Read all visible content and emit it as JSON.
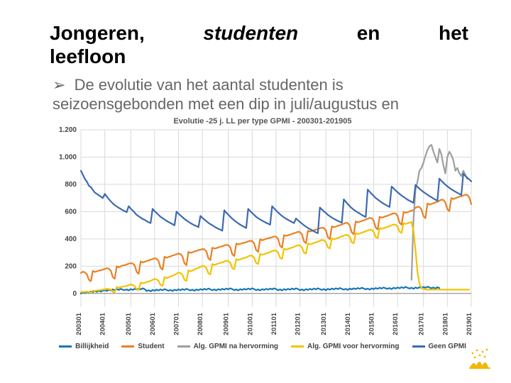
{
  "title_words": [
    "Jongeren,",
    "studenten",
    "en",
    "het"
  ],
  "subtitle": "leefloon",
  "bullet": {
    "arrow": "➢",
    "text": "De evolutie van het aantal studenten is seizoensgebonden met een dip in juli/augustus en"
  },
  "chart": {
    "title": "Evolutie -25 j. LL per type GPMI - 200301-201905",
    "type": "line",
    "x_categories": [
      "200301",
      "200401",
      "200501",
      "200601",
      "200701",
      "200801",
      "200901",
      "201001",
      "201101",
      "201201",
      "201301",
      "201401",
      "201501",
      "201601",
      "201701",
      "201801",
      "201901"
    ],
    "ylim": [
      -100,
      1200
    ],
    "ytick_step": 200,
    "yticks": [
      0,
      200,
      400,
      600,
      800,
      1000,
      1200
    ],
    "yticklabels": [
      "0",
      "200",
      "400",
      "600",
      "800",
      "1.000",
      "1.200"
    ],
    "background_color": "#ffffff",
    "grid_color": "#d9d9d9",
    "line_width": 2.2,
    "series": [
      {
        "name": "Billijkheid",
        "color": "#1776b6",
        "legend": "Billijkheid",
        "values": [
          0,
          10,
          5,
          12,
          8,
          15,
          10,
          18,
          12,
          20,
          14,
          20,
          25,
          18,
          28,
          22,
          30,
          24,
          32,
          26,
          34,
          28,
          25,
          30,
          22,
          32,
          26,
          34,
          28,
          36,
          30,
          38,
          32,
          18,
          24,
          16,
          26,
          20,
          28,
          22,
          30,
          24,
          32,
          26,
          20,
          26,
          18,
          28,
          22,
          30,
          24,
          32,
          26,
          34,
          28,
          22,
          28,
          20,
          30,
          24,
          32,
          26,
          34,
          28,
          36,
          30,
          24,
          30,
          22,
          32,
          26,
          34,
          28,
          36,
          30,
          38,
          32,
          24,
          30,
          22,
          32,
          26,
          34,
          28,
          36,
          30,
          38,
          32,
          24,
          30,
          22,
          32,
          26,
          34,
          28,
          36,
          30,
          38,
          32,
          24,
          30,
          22,
          32,
          26,
          34,
          28,
          36,
          30,
          38,
          32,
          24,
          30,
          22,
          32,
          26,
          34,
          28,
          36,
          30,
          38,
          32,
          26,
          32,
          24,
          34,
          28,
          36,
          30,
          38,
          32,
          40,
          34,
          28,
          34,
          26,
          36,
          30,
          38,
          32,
          40,
          34,
          42,
          36,
          30,
          36,
          28,
          38,
          32,
          40,
          34,
          42,
          36,
          44,
          38,
          34,
          40,
          32,
          42,
          36,
          44,
          38,
          46,
          40,
          48,
          42,
          36,
          42,
          34,
          44,
          38,
          46,
          40,
          48,
          42,
          50,
          44,
          38,
          44,
          36,
          46,
          40
        ]
      },
      {
        "name": "Student",
        "color": "#e98024",
        "legend": "Student",
        "values": [
          150,
          160,
          155,
          140,
          100,
          90,
          165,
          158,
          162,
          168,
          170,
          175,
          180,
          185,
          182,
          168,
          120,
          108,
          200,
          192,
          198,
          205,
          208,
          212,
          218,
          222,
          220,
          205,
          158,
          145,
          235,
          228,
          232,
          238,
          242,
          248,
          252,
          258,
          255,
          238,
          188,
          175,
          270,
          262,
          268,
          272,
          278,
          282,
          288,
          292,
          290,
          272,
          222,
          208,
          305,
          298,
          302,
          308,
          312,
          318,
          320,
          326,
          324,
          308,
          258,
          245,
          335,
          330,
          332,
          338,
          342,
          346,
          352,
          356,
          354,
          338,
          288,
          275,
          366,
          360,
          364,
          368,
          372,
          376,
          382,
          386,
          384,
          368,
          318,
          305,
          398,
          390,
          395,
          400,
          405,
          408,
          412,
          418,
          416,
          400,
          350,
          336,
          428,
          422,
          426,
          432,
          436,
          442,
          446,
          452,
          450,
          432,
          382,
          368,
          460,
          454,
          458,
          464,
          468,
          472,
          478,
          482,
          480,
          462,
          412,
          398,
          492,
          486,
          490,
          496,
          500,
          505,
          512,
          518,
          516,
          498,
          448,
          434,
          528,
          522,
          526,
          532,
          536,
          542,
          548,
          554,
          552,
          534,
          484,
          470,
          562,
          556,
          560,
          566,
          570,
          576,
          582,
          588,
          586,
          568,
          518,
          504,
          598,
          592,
          596,
          602,
          606,
          612,
          628,
          636,
          634,
          616,
          566,
          552,
          660,
          652,
          656,
          662,
          668,
          672,
          680,
          688,
          686,
          668,
          618,
          604,
          700,
          692,
          698,
          704,
          710,
          712,
          718,
          724,
          722,
          705,
          655
        ]
      },
      {
        "name": "Alg. GPMI na hervorming",
        "color": "#9e9e9e",
        "legend": "Alg. GPMI na hervorming",
        "values": [
          null,
          null,
          null,
          null,
          null,
          null,
          null,
          null,
          null,
          null,
          null,
          null,
          null,
          null,
          null,
          null,
          null,
          null,
          null,
          null,
          null,
          null,
          null,
          null,
          null,
          null,
          null,
          null,
          null,
          null,
          null,
          null,
          null,
          null,
          null,
          null,
          null,
          null,
          null,
          null,
          null,
          null,
          null,
          null,
          null,
          null,
          null,
          null,
          null,
          null,
          null,
          null,
          null,
          null,
          null,
          null,
          null,
          null,
          null,
          null,
          null,
          null,
          null,
          null,
          null,
          null,
          null,
          null,
          null,
          null,
          null,
          null,
          null,
          null,
          null,
          null,
          null,
          null,
          null,
          null,
          null,
          null,
          null,
          null,
          null,
          null,
          null,
          null,
          null,
          null,
          null,
          null,
          null,
          null,
          null,
          null,
          null,
          null,
          null,
          null,
          null,
          null,
          null,
          null,
          null,
          null,
          null,
          null,
          null,
          null,
          null,
          null,
          null,
          null,
          null,
          null,
          null,
          null,
          null,
          null,
          null,
          null,
          null,
          null,
          null,
          null,
          null,
          null,
          null,
          null,
          null,
          null,
          null,
          null,
          null,
          null,
          null,
          null,
          null,
          null,
          null,
          null,
          null,
          null,
          null,
          null,
          null,
          null,
          null,
          null,
          null,
          null,
          null,
          null,
          null,
          null,
          null,
          null,
          null,
          null,
          null,
          null,
          null,
          null,
          null,
          null,
          100,
          540,
          760,
          820,
          900,
          920,
          960,
          1010,
          1050,
          1080,
          1090,
          1040,
          1000,
          960,
          1060,
          1020,
          940,
          880,
          1000,
          1040,
          1015,
          980,
          900,
          920,
          880,
          860,
          900,
          870,
          840
        ]
      },
      {
        "name": "Alg. GPMI voor hervorming",
        "color": "#f2c300",
        "legend": "Alg. GPMI voor hervorming",
        "values": [
          10,
          12,
          11,
          14,
          10,
          8,
          20,
          18,
          22,
          24,
          26,
          28,
          30,
          34,
          32,
          28,
          12,
          10,
          48,
          42,
          46,
          50,
          52,
          56,
          60,
          66,
          62,
          52,
          30,
          26,
          80,
          74,
          78,
          84,
          88,
          92,
          100,
          106,
          104,
          92,
          62,
          56,
          120,
          112,
          118,
          124,
          130,
          136,
          145,
          152,
          150,
          136,
          100,
          92,
          170,
          162,
          168,
          176,
          182,
          188,
          195,
          202,
          200,
          186,
          148,
          140,
          216,
          210,
          214,
          220,
          224,
          228,
          234,
          240,
          238,
          224,
          186,
          178,
          252,
          246,
          250,
          256,
          260,
          264,
          272,
          278,
          276,
          262,
          224,
          216,
          290,
          284,
          288,
          294,
          298,
          304,
          310,
          316,
          314,
          300,
          262,
          254,
          328,
          322,
          326,
          332,
          336,
          342,
          348,
          354,
          352,
          338,
          300,
          292,
          366,
          360,
          364,
          370,
          374,
          380,
          386,
          392,
          390,
          376,
          338,
          330,
          404,
          398,
          402,
          408,
          412,
          418,
          424,
          430,
          428,
          414,
          376,
          368,
          442,
          436,
          440,
          446,
          450,
          456,
          462,
          468,
          466,
          452,
          414,
          406,
          480,
          474,
          478,
          484,
          488,
          494,
          500,
          506,
          504,
          490,
          452,
          444,
          516,
          510,
          514,
          520,
          524,
          460,
          320,
          160,
          70,
          40,
          32,
          30,
          28,
          28,
          28,
          28,
          28,
          30,
          28,
          28,
          28,
          28,
          28,
          28,
          28,
          28,
          28,
          28,
          28,
          28,
          28,
          28,
          28,
          28
        ]
      },
      {
        "name": "Geen GPMI",
        "color": "#3d6ab0",
        "legend": "Geen GPMI",
        "values": [
          900,
          870,
          840,
          820,
          790,
          780,
          760,
          740,
          730,
          720,
          710,
          700,
          730,
          710,
          692,
          676,
          660,
          648,
          638,
          628,
          620,
          610,
          604,
          596,
          640,
          622,
          608,
          592,
          576,
          566,
          556,
          546,
          540,
          530,
          522,
          516,
          620,
          604,
          590,
          576,
          562,
          552,
          542,
          532,
          524,
          516,
          508,
          500,
          600,
          586,
          572,
          560,
          546,
          536,
          526,
          516,
          508,
          500,
          494,
          486,
          568,
          554,
          542,
          530,
          518,
          508,
          500,
          490,
          482,
          474,
          468,
          460,
          610,
          592,
          578,
          562,
          548,
          536,
          524,
          514,
          504,
          496,
          488,
          480,
          620,
          604,
          590,
          576,
          562,
          552,
          542,
          534,
          526,
          518,
          512,
          504,
          640,
          624,
          608,
          594,
          580,
          568,
          558,
          548,
          540,
          532,
          524,
          516,
          550,
          536,
          524,
          512,
          500,
          490,
          480,
          472,
          464,
          456,
          448,
          442,
          630,
          616,
          602,
          590,
          576,
          566,
          556,
          548,
          540,
          532,
          526,
          518,
          690,
          672,
          656,
          640,
          626,
          614,
          604,
          594,
          586,
          576,
          568,
          560,
          762,
          746,
          730,
          716,
          700,
          690,
          678,
          668,
          658,
          650,
          642,
          634,
          784,
          770,
          756,
          742,
          730,
          718,
          708,
          698,
          688,
          680,
          672,
          664,
          796,
          782,
          768,
          756,
          744,
          734,
          724,
          714,
          706,
          696,
          688,
          680,
          842,
          826,
          812,
          798,
          786,
          774,
          764,
          756,
          746,
          738,
          730,
          722,
          878,
          862,
          848,
          836,
          822
        ]
      }
    ]
  },
  "logo_color": "#f2b705"
}
